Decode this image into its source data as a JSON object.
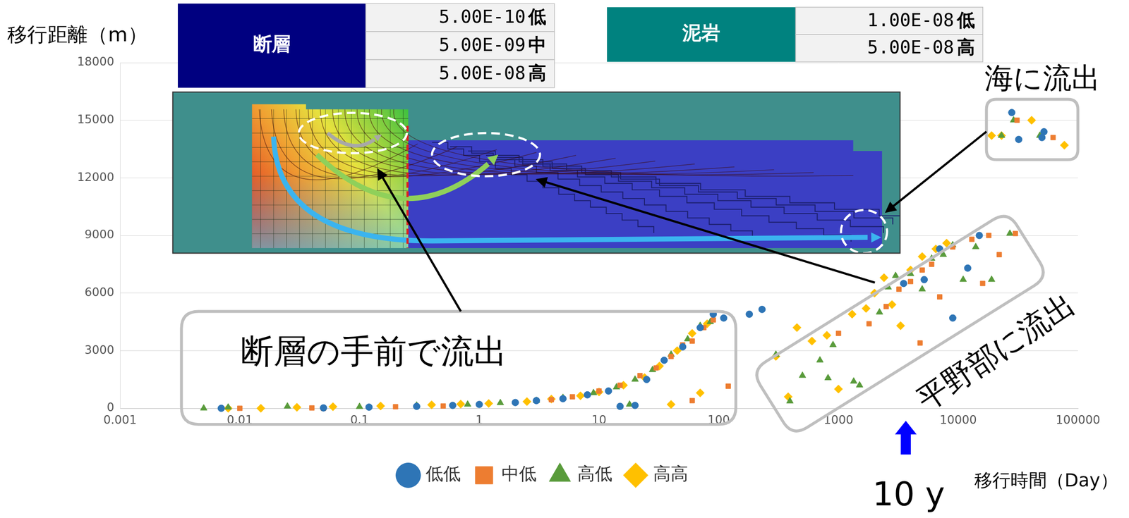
{
  "chart_data": {
    "type": "scatter",
    "y_label": "移行距離（m）",
    "x_label": "移行時間（Day）",
    "log": "x",
    "xlim": [
      0.001,
      100000
    ],
    "xticks": [
      0.001,
      0.01,
      0.1,
      1,
      10,
      100,
      1000,
      10000,
      100000
    ],
    "ylim": [
      0,
      18000
    ],
    "yticks": [
      0,
      3000,
      6000,
      9000,
      12000,
      15000,
      18000
    ],
    "grid": "y",
    "legend": "bottom",
    "series": [
      {
        "name": "低低",
        "color": "#2e75b6",
        "marker": "circle",
        "x": [
          0.007,
          0.05,
          0.12,
          0.3,
          0.6,
          1,
          2,
          3,
          5,
          8,
          12,
          15,
          20,
          25,
          35,
          50,
          70,
          90,
          110,
          180,
          230,
          3500,
          5200,
          7000,
          9000,
          12000,
          15000,
          28000,
          32000,
          50000,
          52000
        ],
        "y": [
          0,
          20,
          60,
          100,
          150,
          200,
          300,
          400,
          500,
          700,
          900,
          100,
          150,
          1500,
          2500,
          3200,
          4200,
          4900,
          4700,
          4900,
          5150,
          6500,
          6700,
          8300,
          4700,
          7300,
          9000,
          15400,
          14000,
          14100,
          14400
        ]
      },
      {
        "name": "中低",
        "color": "#ed7d31",
        "marker": "square",
        "x": [
          0.01,
          0.04,
          0.05,
          0.2,
          0.5,
          1,
          2,
          4,
          6,
          10,
          15,
          22,
          30,
          40,
          50,
          60,
          75,
          90,
          120,
          60,
          1000,
          1800,
          2500,
          3200,
          4000,
          4800,
          5000,
          6000,
          7000,
          9000,
          13000,
          16000,
          18000,
          22000,
          30000,
          31000,
          62000
        ],
        "y": [
          0,
          20,
          0,
          80,
          120,
          200,
          300,
          450,
          600,
          900,
          1200,
          1700,
          2100,
          2700,
          3300,
          3500,
          4200,
          4600,
          1150,
          400,
          3900,
          4400,
          5300,
          6200,
          6600,
          3400,
          7200,
          7500,
          5800,
          8400,
          8800,
          6500,
          9000,
          8000,
          9100,
          15000,
          14100
        ]
      },
      {
        "name": "高低",
        "color": "#599b3b",
        "marker": "triangle",
        "x": [
          0.005,
          0.008,
          0.025,
          0.1,
          0.3,
          0.8,
          1.5,
          3,
          5,
          9,
          14,
          18,
          20,
          28,
          40,
          55,
          70,
          85,
          300,
          393,
          500,
          700,
          818,
          900,
          1340,
          1500,
          2200,
          2600,
          3000,
          4000,
          5000,
          6000,
          7500,
          9000,
          11000,
          14000,
          19000,
          27000,
          23000,
          29000,
          48000
        ],
        "y": [
          0,
          50,
          100,
          80,
          150,
          200,
          280,
          400,
          550,
          800,
          1100,
          200,
          1500,
          2000,
          2800,
          3600,
          4300,
          4500,
          2800,
          370,
          1700,
          2500,
          1576,
          3300,
          1400,
          1200,
          5000,
          6300,
          6900,
          7000,
          6200,
          7800,
          8000,
          8500,
          6700,
          8400,
          6700,
          9100,
          14200,
          15000,
          14200
        ]
      },
      {
        "name": "高高",
        "color": "#ffc000",
        "marker": "diamond",
        "x": [
          0.008,
          0.015,
          0.03,
          0.06,
          0.15,
          0.4,
          0.7,
          1.2,
          2.5,
          4,
          7,
          10,
          16,
          24,
          32,
          45,
          60,
          80,
          40,
          70,
          300,
          380,
          450,
          600,
          800,
          1000,
          1300,
          1700,
          2000,
          2400,
          2800,
          3300,
          4000,
          5000,
          6500,
          8000,
          19000,
          23000,
          41000,
          77000
        ],
        "y": [
          0,
          0,
          50,
          80,
          120,
          180,
          220,
          250,
          350,
          480,
          650,
          850,
          1200,
          1600,
          2200,
          3000,
          3900,
          4400,
          200,
          800,
          2700,
          600,
          4200,
          3500,
          3800,
          1000,
          4900,
          5200,
          6000,
          6800,
          5400,
          4300,
          7200,
          7900,
          8300,
          8600,
          14200,
          14200,
          15000,
          13700
        ]
      }
    ],
    "annotations": [
      {
        "text": "断層の手前で流出"
      },
      {
        "text": "平野部に流出"
      },
      {
        "text": "海に流出"
      },
      {
        "text": "10 y",
        "x": 3650
      }
    ],
    "tables": [
      {
        "header": "断層",
        "color": "#000080",
        "rows": [
          [
            "5.00E-10",
            "低"
          ],
          [
            "5.00E-09",
            "中"
          ],
          [
            "5.00E-08",
            "高"
          ]
        ]
      },
      {
        "header": "泥岩",
        "color": "#00827f",
        "rows": [
          [
            "1.00E-08",
            "低"
          ],
          [
            "5.00E-08",
            "高"
          ]
        ]
      }
    ]
  }
}
